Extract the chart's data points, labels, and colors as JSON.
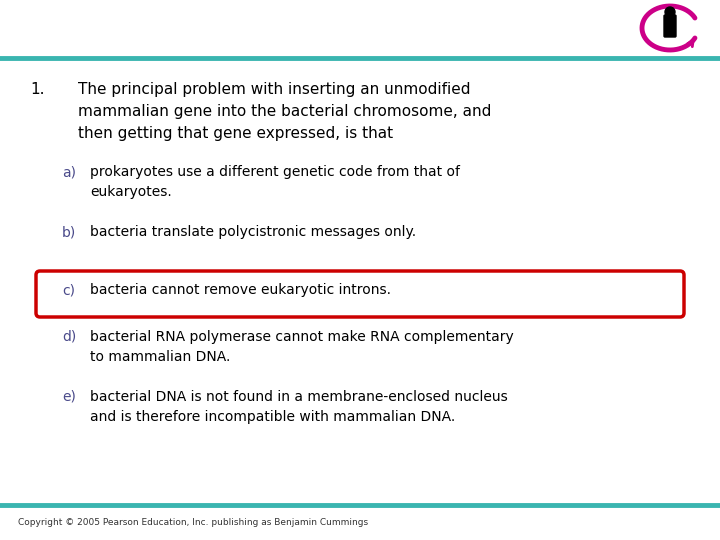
{
  "bg_color": "#ffffff",
  "teal_color": "#3ab5b0",
  "question_number": "1.",
  "question_text_line1": "The principal problem with inserting an unmodified",
  "question_text_line2": "mammalian gene into the bacterial chromosome, and",
  "question_text_line3": "then getting that gene expressed, is that",
  "options": [
    {
      "label": "a)",
      "text": "prokaryotes use a different genetic code from that of\neukaryotes.",
      "highlight": false
    },
    {
      "label": "b)",
      "text": "bacteria translate polycistronic messages only.",
      "highlight": false
    },
    {
      "label": "c)",
      "text": "bacteria cannot remove eukaryotic introns.",
      "highlight": true
    },
    {
      "label": "d)",
      "text": "bacterial RNA polymerase cannot make RNA complementary\nto mammalian DNA.",
      "highlight": false
    },
    {
      "label": "e)",
      "text": "bacterial DNA is not found in a membrane-enclosed nucleus\nand is therefore incompatible with mammalian DNA.",
      "highlight": false
    }
  ],
  "copyright": "Copyright © 2005 Pearson Education, Inc. publishing as Benjamin Cummings",
  "text_color": "#000000",
  "label_color": "#4a4a8a",
  "highlight_box_color": "#cc0000",
  "highlight_box_fill": "#ffffff",
  "magenta_color": "#cc0088",
  "font_size_question": 11,
  "font_size_options": 10,
  "font_size_copyright": 6.5
}
